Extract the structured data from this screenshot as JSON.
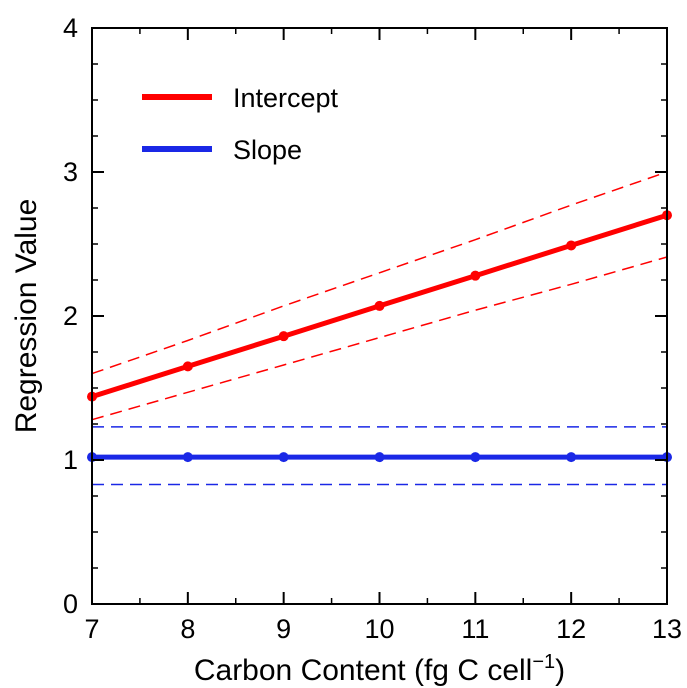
{
  "chart_data": {
    "type": "line",
    "title": "",
    "xlabel": "Carbon Content (fg C cell",
    "xlabel_superscript": "−1",
    "xlabel_suffix": ")",
    "ylabel": "Regression Value",
    "xlim": [
      7,
      13
    ],
    "ylim": [
      0,
      4
    ],
    "x_ticks": [
      7,
      8,
      9,
      10,
      11,
      12,
      13
    ],
    "y_ticks": [
      0,
      1,
      2,
      3,
      4
    ],
    "grid": false,
    "legend_position": "top-left",
    "x": [
      7,
      8,
      9,
      10,
      11,
      12,
      13
    ],
    "series": [
      {
        "name": "Intercept",
        "color": "#ff0000",
        "values": [
          1.44,
          1.65,
          1.86,
          2.07,
          2.28,
          2.49,
          2.7
        ],
        "ci_upper": [
          1.6,
          1.83,
          2.07,
          2.3,
          2.53,
          2.77,
          3.0
        ],
        "ci_lower": [
          1.28,
          1.47,
          1.66,
          1.85,
          2.04,
          2.22,
          2.41
        ]
      },
      {
        "name": "Slope",
        "color": "#1a28e6",
        "values": [
          1.02,
          1.02,
          1.02,
          1.02,
          1.02,
          1.02,
          1.02
        ],
        "ci_upper": [
          1.23,
          1.23,
          1.23,
          1.23,
          1.23,
          1.23,
          1.23
        ],
        "ci_lower": [
          0.83,
          0.83,
          0.83,
          0.83,
          0.83,
          0.83,
          0.83
        ]
      }
    ]
  }
}
